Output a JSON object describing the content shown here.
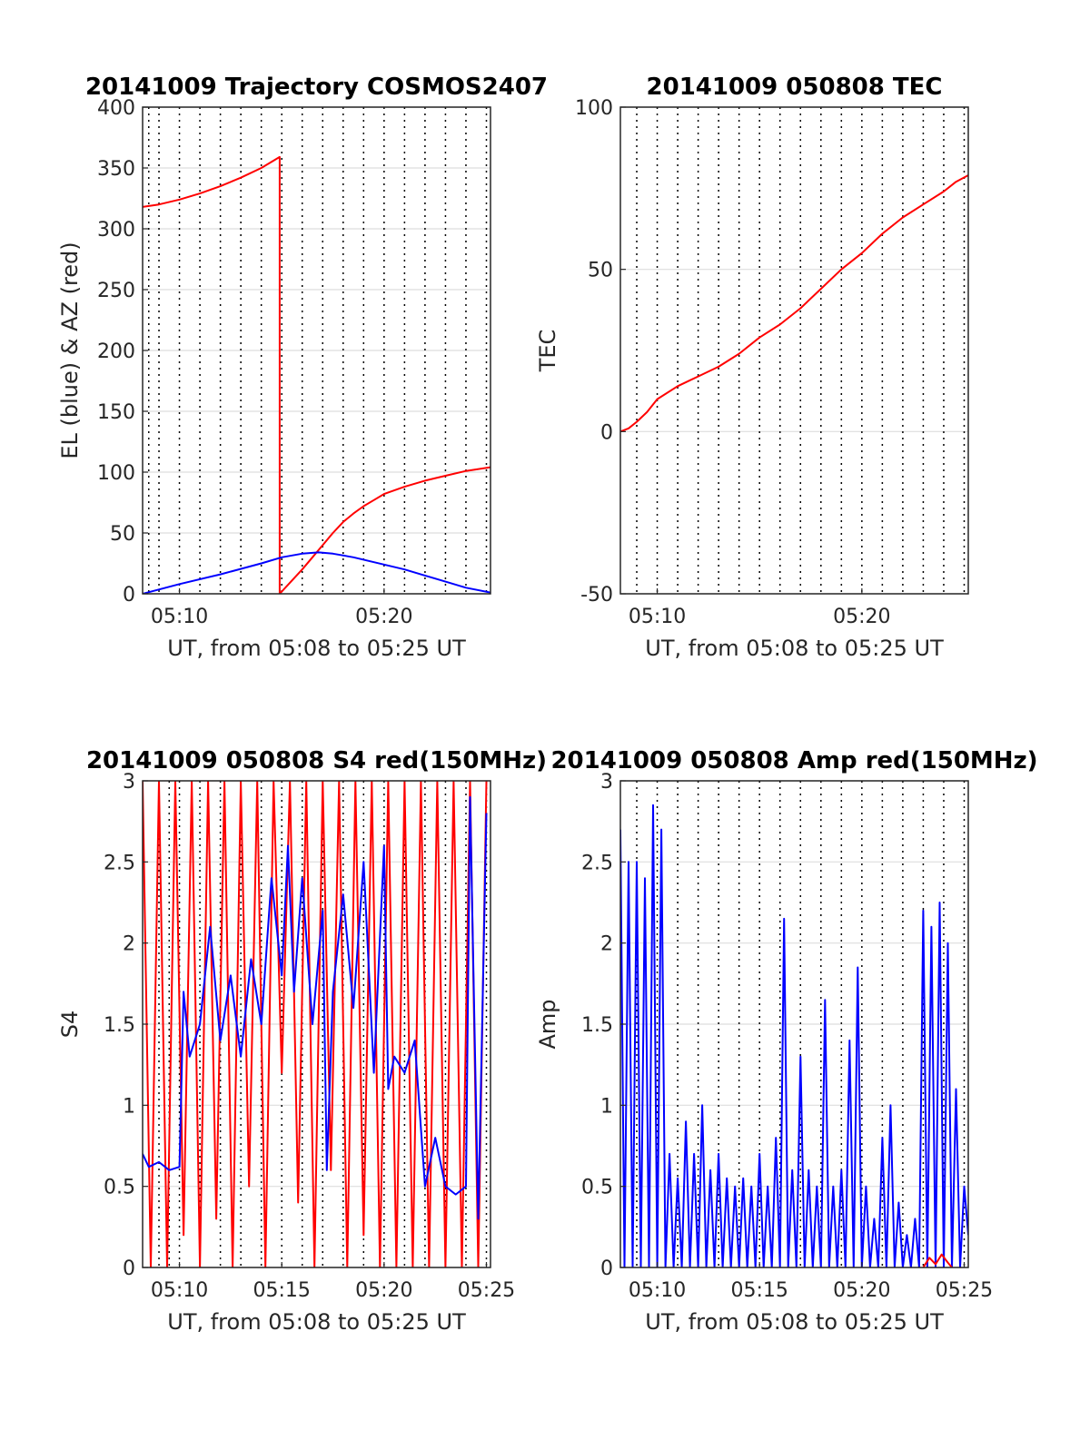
{
  "chart_data": [
    {
      "type": "line",
      "title": "20141009 Trajectory COSMOS2407",
      "xlabel": "UT, from 05:08 to 05:25 UT",
      "ylabel": "EL (blue) & AZ (red)",
      "xlim": [
        308.2,
        325.2
      ],
      "ylim": [
        0,
        400
      ],
      "xticks": [
        310,
        320
      ],
      "xtick_labels": [
        "05:10",
        "05:20"
      ],
      "yticks": [
        0,
        50,
        100,
        150,
        200,
        250,
        300,
        350,
        400
      ],
      "ytick_labels": [
        "0",
        "50",
        "100",
        "150",
        "200",
        "250",
        "300",
        "350",
        "400"
      ],
      "vgrid_minutes": [
        308.5,
        309,
        310,
        311,
        312,
        313,
        314,
        315,
        316,
        317,
        318,
        319,
        320,
        321,
        322,
        323,
        324,
        325
      ],
      "grid": true,
      "series": [
        {
          "color": "#ff0000",
          "x": [
            308.2,
            309,
            310,
            311,
            312,
            313,
            314,
            314.9,
            314.9,
            315.5,
            316,
            316.5,
            317,
            317.5,
            318,
            318.5,
            319,
            319.5,
            320,
            321,
            322,
            323,
            324,
            325.2
          ],
          "y": [
            318,
            320,
            324,
            329,
            335,
            342,
            350,
            359,
            0,
            11,
            20,
            30,
            40,
            50,
            59,
            66,
            72,
            77,
            82,
            88,
            93,
            97,
            101,
            104
          ]
        },
        {
          "color": "#0000ff",
          "x": [
            308.2,
            310,
            312,
            314,
            315,
            316,
            316.8,
            317.5,
            318.5,
            320,
            321,
            322,
            323,
            324,
            325.2
          ],
          "y": [
            0,
            8,
            16,
            25,
            30,
            33,
            34,
            33,
            30,
            24,
            20,
            15,
            10,
            5,
            1
          ]
        }
      ]
    },
    {
      "type": "line",
      "title": "20141009 050808 TEC",
      "xlabel": "UT, from 05:08 to 05:25 UT",
      "ylabel": "TEC",
      "xlim": [
        308.2,
        325.2
      ],
      "ylim": [
        -50,
        100
      ],
      "xticks": [
        310,
        320
      ],
      "xtick_labels": [
        "05:10",
        "05:20"
      ],
      "yticks": [
        -50,
        0,
        50,
        100
      ],
      "ytick_labels": [
        "-50",
        "0",
        "50",
        "100"
      ],
      "vgrid_minutes": [
        309,
        310,
        311,
        312,
        313,
        314,
        315,
        316,
        317,
        318,
        319,
        320,
        321,
        322,
        323,
        324,
        325
      ],
      "grid": true,
      "series": [
        {
          "color": "#ff0000",
          "x": [
            308.2,
            308.6,
            309,
            309.5,
            310,
            311,
            312,
            313,
            314,
            315,
            316,
            317,
            318,
            319,
            320,
            321,
            322,
            323,
            324,
            324.6,
            325.2
          ],
          "y": [
            0,
            1,
            3,
            6,
            10,
            14,
            17,
            20,
            24,
            29,
            33,
            38,
            44,
            50,
            55,
            61,
            66,
            70,
            74,
            77,
            79
          ]
        }
      ]
    },
    {
      "type": "line",
      "title": "20141009 050808 S4 red(150MHz)",
      "xlabel": "UT, from 05:08 to 05:25 UT",
      "ylabel": "S4",
      "xlim": [
        308.2,
        325.2
      ],
      "ylim": [
        0,
        3
      ],
      "xticks": [
        310,
        315,
        320,
        325
      ],
      "xtick_labels": [
        "05:10",
        "05:15",
        "05:20",
        "05:25"
      ],
      "yticks": [
        0,
        0.5,
        1,
        1.5,
        2,
        2.5,
        3
      ],
      "ytick_labels": [
        "0",
        "0.5",
        "1",
        "1.5",
        "2",
        "2.5",
        "3"
      ],
      "vgrid_minutes": [
        309,
        309.5,
        310,
        311,
        312,
        313,
        314,
        315,
        316,
        317,
        318,
        319,
        320,
        321,
        322,
        323,
        324,
        325
      ],
      "grid": true,
      "series": [
        {
          "color": "#ff0000",
          "x": [
            308.2,
            308.6,
            309,
            309.4,
            309.8,
            310.2,
            310.6,
            311,
            311.4,
            311.8,
            312.2,
            312.6,
            313,
            313.4,
            313.8,
            314.2,
            314.6,
            315,
            315.4,
            315.8,
            316.2,
            316.6,
            317,
            317.4,
            317.8,
            318.2,
            318.6,
            319,
            319.4,
            319.8,
            320.2,
            320.6,
            321,
            321.4,
            321.8,
            322.2,
            322.6,
            323,
            323.4,
            323.8,
            324.2,
            324.6,
            325
          ],
          "y": [
            3,
            0,
            3,
            0,
            3,
            0.2,
            3,
            0,
            3,
            0.3,
            3,
            0,
            3,
            0.5,
            3,
            0,
            3,
            1.2,
            3,
            0.4,
            3,
            0,
            3,
            0.6,
            3,
            0,
            3,
            0.2,
            3,
            0,
            3,
            0,
            3,
            0,
            3,
            0,
            3,
            0,
            3,
            0,
            3,
            0,
            3
          ]
        },
        {
          "color": "#0000ff",
          "x": [
            308.2,
            308.5,
            309,
            309.5,
            310,
            310.2,
            310.5,
            311,
            311.5,
            312,
            312.5,
            313,
            313.5,
            314,
            314.5,
            315,
            315.3,
            315.6,
            316,
            316.5,
            317,
            317.2,
            317.5,
            318,
            318.5,
            319,
            319.5,
            320,
            320.2,
            320.5,
            321,
            321.5,
            322,
            322.5,
            323,
            323.5,
            324,
            324.2,
            324.6,
            325
          ],
          "y": [
            0.7,
            0.62,
            0.65,
            0.6,
            0.62,
            1.7,
            1.3,
            1.5,
            2.1,
            1.4,
            1.8,
            1.3,
            1.9,
            1.5,
            2.4,
            1.8,
            2.6,
            1.7,
            2.4,
            1.5,
            2.2,
            0.6,
            1.7,
            2.3,
            1.6,
            2.5,
            1.2,
            2.6,
            1.1,
            1.3,
            1.2,
            1.4,
            0.5,
            0.8,
            0.5,
            0.45,
            0.5,
            2.9,
            0.3,
            2.8
          ]
        }
      ]
    },
    {
      "type": "line",
      "title": "20141009 050808 Amp red(150MHz)",
      "xlabel": "UT, from 05:08 to 05:25 UT",
      "ylabel": "Amp",
      "xlim": [
        308.2,
        325.2
      ],
      "ylim": [
        0,
        3
      ],
      "xticks": [
        310,
        315,
        320,
        325
      ],
      "xtick_labels": [
        "05:10",
        "05:15",
        "05:20",
        "05:25"
      ],
      "yticks": [
        0,
        0.5,
        1,
        1.5,
        2,
        2.5,
        3
      ],
      "ytick_labels": [
        "0",
        "0.5",
        "1",
        "1.5",
        "2",
        "2.5",
        "3"
      ],
      "vgrid_minutes": [
        309,
        310,
        311,
        312,
        313,
        314,
        315,
        316,
        317,
        318,
        319,
        320,
        321,
        322,
        323,
        324,
        325
      ],
      "grid": true,
      "series": [
        {
          "color": "#0000ff",
          "x": [
            308.2,
            308.4,
            308.6,
            308.8,
            309,
            309.2,
            309.4,
            309.6,
            309.8,
            310,
            310.2,
            310.4,
            310.6,
            310.8,
            311,
            311.2,
            311.4,
            311.6,
            311.8,
            312,
            312.2,
            312.4,
            312.6,
            312.8,
            313,
            313.2,
            313.4,
            313.6,
            313.8,
            314,
            314.2,
            314.4,
            314.6,
            314.8,
            315,
            315.2,
            315.4,
            315.6,
            315.8,
            316,
            316.2,
            316.4,
            316.6,
            316.8,
            317,
            317.2,
            317.4,
            317.6,
            317.8,
            318,
            318.2,
            318.4,
            318.6,
            318.8,
            319,
            319.2,
            319.4,
            319.6,
            319.8,
            320,
            320.2,
            320.4,
            320.6,
            320.8,
            321,
            321.2,
            321.4,
            321.6,
            321.8,
            322,
            322.2,
            322.4,
            322.6,
            322.8,
            323,
            323.2,
            323.4,
            323.6,
            323.8,
            324,
            324.2,
            324.4,
            324.6,
            324.8,
            325,
            325.2
          ],
          "y": [
            2.7,
            0,
            2.5,
            0,
            2.5,
            0,
            2.4,
            0,
            2.85,
            0,
            2.7,
            0,
            0.7,
            0,
            0.55,
            0,
            0.9,
            0,
            0.7,
            0,
            1.0,
            0,
            0.6,
            0,
            0.7,
            0,
            0.55,
            0,
            0.5,
            0,
            0.55,
            0,
            0.5,
            0,
            0.7,
            0,
            0.5,
            0,
            0.8,
            0,
            2.15,
            0,
            0.6,
            0,
            1.3,
            0,
            0.6,
            0,
            0.5,
            0,
            1.65,
            0,
            0.5,
            0,
            0.6,
            0,
            1.4,
            0,
            1.85,
            0,
            0.5,
            0,
            0.3,
            0,
            0.8,
            0,
            1.0,
            0,
            0.4,
            0,
            0.2,
            0,
            0.3,
            0,
            2.2,
            0,
            2.1,
            0,
            2.25,
            0,
            2.0,
            0,
            1.1,
            0,
            0.5,
            0.2
          ]
        },
        {
          "color": "#ff0000",
          "x": [
            323,
            323.3,
            323.6,
            323.9,
            324.2,
            324.4
          ],
          "y": [
            0,
            0.06,
            0.02,
            0.08,
            0.03,
            0
          ]
        }
      ]
    }
  ]
}
